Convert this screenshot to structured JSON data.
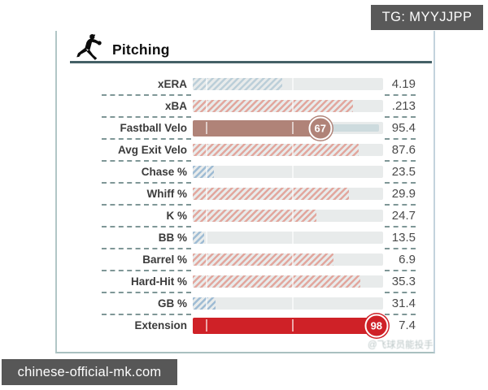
{
  "overlays": {
    "telegram_badge": {
      "text": "TG: MYYJJPP",
      "bg": "#595959"
    },
    "site_badge": {
      "text": "chinese-official-mk.com",
      "bg": "#575757"
    },
    "watermark": {
      "text": "@飞球员能投手"
    }
  },
  "header": {
    "title": "Pitching",
    "icon": "pitcher-silhouette"
  },
  "colors": {
    "hatch_red": "#e2a79e",
    "hatch_blue": "#9fbcd4",
    "hatch_blue_pale": "#bccfd9",
    "solid_brown": "#b08378",
    "solid_red": "#cf2127",
    "track": "#e8ebeb",
    "fastball_remainder": "#cddbde",
    "underline": "#446066",
    "dash": "#7f9797"
  },
  "chart_data": {
    "type": "bar",
    "orientation": "horizontal",
    "title": "Pitching",
    "value_axis": "percentile (0-100), bar length = percentile",
    "legend": "solid bars carry a circled percentile badge; hatched red = high percentile, hatched blue = low percentile",
    "rows": [
      {
        "label": "xERA",
        "value": "4.19",
        "percentile": 47,
        "style": "hatch_blue_pale",
        "badge": null
      },
      {
        "label": "xBA",
        "value": ".213",
        "percentile": 84,
        "style": "hatch_red",
        "badge": null
      },
      {
        "label": "Fastball Velo",
        "value": "95.4",
        "percentile": 67,
        "style": "solid_brown",
        "badge": "67"
      },
      {
        "label": "Avg Exit Velo",
        "value": "87.6",
        "percentile": 87,
        "style": "hatch_red",
        "badge": null
      },
      {
        "label": "Chase %",
        "value": "23.5",
        "percentile": 11,
        "style": "hatch_blue",
        "badge": null
      },
      {
        "label": "Whiff %",
        "value": "29.9",
        "percentile": 82,
        "style": "hatch_red",
        "badge": null
      },
      {
        "label": "K %",
        "value": "24.7",
        "percentile": 65,
        "style": "hatch_red",
        "badge": null
      },
      {
        "label": "BB %",
        "value": "13.5",
        "percentile": 6,
        "style": "hatch_blue",
        "badge": null
      },
      {
        "label": "Barrel %",
        "value": "6.9",
        "percentile": 74,
        "style": "hatch_red",
        "badge": null
      },
      {
        "label": "Hard-Hit %",
        "value": "35.3",
        "percentile": 88,
        "style": "hatch_red",
        "badge": null
      },
      {
        "label": "GB %",
        "value": "31.4",
        "percentile": 12,
        "style": "hatch_blue",
        "badge": null
      },
      {
        "label": "Extension",
        "value": "7.4",
        "percentile": 98,
        "style": "solid_red",
        "badge": "98"
      }
    ]
  }
}
